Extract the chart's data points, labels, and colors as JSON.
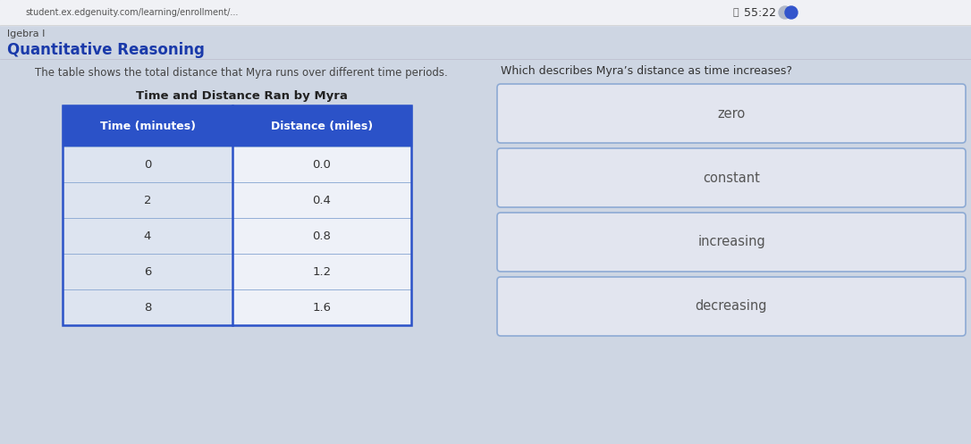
{
  "browser_bar_text": "student.ex.edgenuity.com/learning/enrollment/...",
  "timer_text": "55:22",
  "subject_label": "lgebra I",
  "section_label": "Quantitative Reasoning",
  "left_description": "The table shows the total distance that Myra runs over different time periods.",
  "table_title": "Time and Distance Ran by Myra",
  "table_header": [
    "Time (minutes)",
    "Distance (miles)"
  ],
  "table_data": [
    [
      0,
      "0.0"
    ],
    [
      2,
      "0.4"
    ],
    [
      4,
      "0.8"
    ],
    [
      6,
      "1.2"
    ],
    [
      8,
      "1.6"
    ]
  ],
  "right_question": "Which describes Myra’s distance as time increases?",
  "answer_options": [
    "zero",
    "constant",
    "increasing",
    "decreasing"
  ],
  "header_bg_color": "#2b52c8",
  "header_text_color": "#ffffff",
  "table_border_color": "#8daad4",
  "col1_bg_color": "#dde4f0",
  "col2_bg_color": "#eef1f8",
  "body_bg_color": "#ced6e3",
  "option_box_bg": "#e2e5ef",
  "option_box_border": "#8daad4",
  "option_text_color": "#555555",
  "top_bar_bg": "#f0f1f5",
  "top_bar_border": "#cccccc",
  "subject_color": "#444444",
  "section_color": "#1a3aaa",
  "desc_color": "#444444",
  "table_title_color": "#222222",
  "question_color": "#333333",
  "timer_color": "#333333"
}
